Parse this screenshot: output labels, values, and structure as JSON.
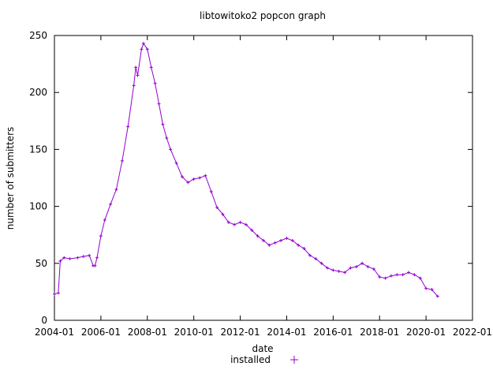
{
  "chart_data": {
    "type": "scatter",
    "title": "libtowitoko2 popcon graph",
    "xlabel": "date",
    "ylabel": "number of submitters",
    "xlim": [
      "2004-01",
      "2022-01"
    ],
    "ylim": [
      0,
      250
    ],
    "x_ticks": [
      "2004-01",
      "2006-01",
      "2008-01",
      "2010-01",
      "2012-01",
      "2014-01",
      "2016-01",
      "2018-01",
      "2020-01",
      "2022-01"
    ],
    "y_ticks": [
      0,
      50,
      100,
      150,
      200,
      250
    ],
    "grid": false,
    "legend_position": "bottom-center",
    "series": [
      {
        "name": "installed",
        "color": "#9400d3",
        "marker": "plus",
        "x": [
          "2004-01",
          "2004-03",
          "2004-04",
          "2004-06",
          "2004-09",
          "2005-01",
          "2005-04",
          "2005-07",
          "2005-09",
          "2005-10",
          "2005-11",
          "2006-01",
          "2006-03",
          "2006-06",
          "2006-09",
          "2006-12",
          "2007-03",
          "2007-06",
          "2007-07",
          "2007-08",
          "2007-10",
          "2007-11",
          "2008-01",
          "2008-03",
          "2008-05",
          "2008-07",
          "2008-09",
          "2008-11",
          "2009-01",
          "2009-04",
          "2009-07",
          "2009-10",
          "2010-01",
          "2010-04",
          "2010-07",
          "2010-10",
          "2011-01",
          "2011-04",
          "2011-07",
          "2011-10",
          "2012-01",
          "2012-04",
          "2012-07",
          "2012-10",
          "2013-01",
          "2013-04",
          "2013-07",
          "2013-10",
          "2014-01",
          "2014-04",
          "2014-07",
          "2014-10",
          "2015-01",
          "2015-04",
          "2015-07",
          "2015-10",
          "2016-01",
          "2016-04",
          "2016-07",
          "2016-10",
          "2017-01",
          "2017-04",
          "2017-07",
          "2017-10",
          "2018-01",
          "2018-04",
          "2018-07",
          "2018-10",
          "2019-01",
          "2019-04",
          "2019-07",
          "2019-10",
          "2020-01",
          "2020-04",
          "2020-07"
        ],
        "y": [
          23,
          24,
          52,
          55,
          54,
          55,
          56,
          57,
          48,
          48,
          55,
          74,
          88,
          102,
          115,
          140,
          170,
          206,
          222,
          215,
          238,
          243,
          238,
          222,
          208,
          190,
          172,
          160,
          150,
          138,
          126,
          121,
          124,
          125,
          127,
          113,
          99,
          93,
          86,
          84,
          86,
          84,
          79,
          74,
          70,
          66,
          68,
          70,
          72,
          70,
          66,
          63,
          57,
          54,
          50,
          46,
          44,
          43,
          42,
          46,
          47,
          50,
          47,
          45,
          38,
          37,
          39,
          40,
          40,
          42,
          40,
          37,
          28,
          27,
          21
        ]
      }
    ]
  }
}
